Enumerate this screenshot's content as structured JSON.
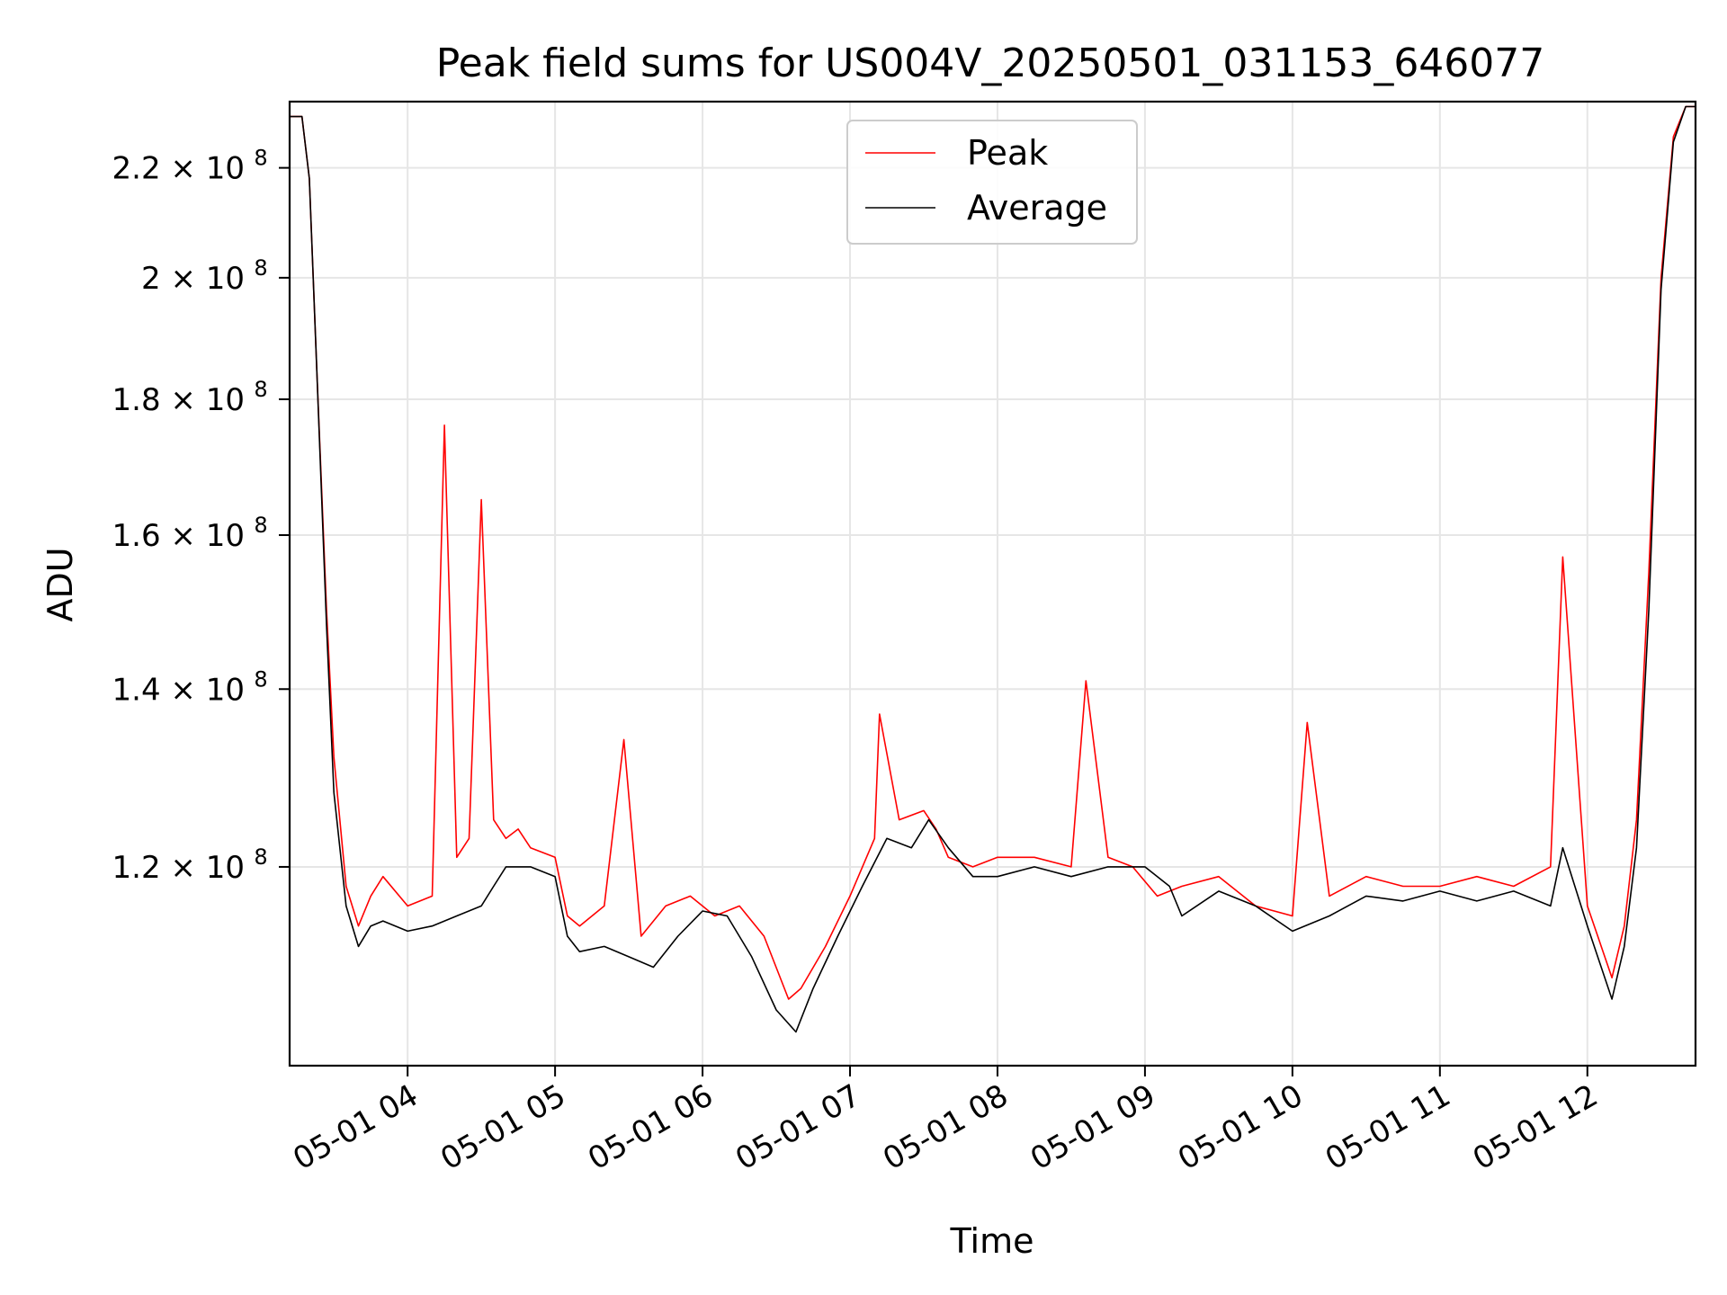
{
  "chart_data": {
    "type": "line",
    "title": "Peak field sums for US004V_20250501_031153_646077",
    "xlabel": "Time",
    "ylabel": "ADU",
    "y_scale": "log",
    "grid": true,
    "legend_position": "top-center",
    "xlim": [
      "2025-05-01 03:12",
      "2025-05-01 12:44"
    ],
    "ylim": [
      101000000,
      233000000
    ],
    "x_ticks": [
      {
        "value": "2025-05-01 04:00",
        "label": "05-01 04"
      },
      {
        "value": "2025-05-01 05:00",
        "label": "05-01 05"
      },
      {
        "value": "2025-05-01 06:00",
        "label": "05-01 06"
      },
      {
        "value": "2025-05-01 07:00",
        "label": "05-01 07"
      },
      {
        "value": "2025-05-01 08:00",
        "label": "05-01 08"
      },
      {
        "value": "2025-05-01 09:00",
        "label": "05-01 09"
      },
      {
        "value": "2025-05-01 10:00",
        "label": "05-01 10"
      },
      {
        "value": "2025-05-01 11:00",
        "label": "05-01 11"
      },
      {
        "value": "2025-05-01 12:00",
        "label": "05-01 12"
      }
    ],
    "y_ticks": [
      {
        "value": 120000000,
        "mantissa": "1.2",
        "base": "10",
        "exp": "8"
      },
      {
        "value": 140000000,
        "mantissa": "1.4",
        "base": "10",
        "exp": "8"
      },
      {
        "value": 160000000,
        "mantissa": "1.6",
        "base": "10",
        "exp": "8"
      },
      {
        "value": 180000000,
        "mantissa": "1.8",
        "base": "10",
        "exp": "8"
      },
      {
        "value": 200000000,
        "mantissa": "2",
        "base": "10",
        "exp": "8"
      },
      {
        "value": 220000000,
        "mantissa": "2.2",
        "base": "10",
        "exp": "8"
      }
    ],
    "series": [
      {
        "name": "Peak",
        "color": "#ff0000",
        "x": [
          "2025-05-01 03:12",
          "2025-05-01 03:17",
          "2025-05-01 03:20",
          "2025-05-01 03:23",
          "2025-05-01 03:27",
          "2025-05-01 03:30",
          "2025-05-01 03:35",
          "2025-05-01 03:40",
          "2025-05-01 03:45",
          "2025-05-01 03:50",
          "2025-05-01 04:00",
          "2025-05-01 04:10",
          "2025-05-01 04:15",
          "2025-05-01 04:20",
          "2025-05-01 04:25",
          "2025-05-01 04:30",
          "2025-05-01 04:35",
          "2025-05-01 04:40",
          "2025-05-01 04:45",
          "2025-05-01 04:50",
          "2025-05-01 05:00",
          "2025-05-01 05:05",
          "2025-05-01 05:10",
          "2025-05-01 05:20",
          "2025-05-01 05:28",
          "2025-05-01 05:35",
          "2025-05-01 05:45",
          "2025-05-01 05:55",
          "2025-05-01 06:05",
          "2025-05-01 06:15",
          "2025-05-01 06:25",
          "2025-05-01 06:35",
          "2025-05-01 06:40",
          "2025-05-01 06:50",
          "2025-05-01 07:00",
          "2025-05-01 07:10",
          "2025-05-01 07:12",
          "2025-05-01 07:20",
          "2025-05-01 07:30",
          "2025-05-01 07:35",
          "2025-05-01 07:40",
          "2025-05-01 07:50",
          "2025-05-01 08:00",
          "2025-05-01 08:15",
          "2025-05-01 08:30",
          "2025-05-01 08:36",
          "2025-05-01 08:45",
          "2025-05-01 08:55",
          "2025-05-01 09:05",
          "2025-05-01 09:15",
          "2025-05-01 09:30",
          "2025-05-01 09:45",
          "2025-05-01 10:00",
          "2025-05-01 10:06",
          "2025-05-01 10:15",
          "2025-05-01 10:30",
          "2025-05-01 10:45",
          "2025-05-01 11:00",
          "2025-05-01 11:15",
          "2025-05-01 11:30",
          "2025-05-01 11:45",
          "2025-05-01 11:50",
          "2025-05-01 12:00",
          "2025-05-01 12:10",
          "2025-05-01 12:15",
          "2025-05-01 12:20",
          "2025-05-01 12:25",
          "2025-05-01 12:30",
          "2025-05-01 12:35",
          "2025-05-01 12:40",
          "2025-05-01 12:44"
        ],
        "values": [
          230000000,
          230000000,
          218000000,
          185000000,
          150000000,
          132000000,
          118000000,
          114000000,
          117000000,
          119000000,
          116000000,
          117000000,
          176000000,
          121000000,
          123000000,
          165000000,
          125000000,
          123000000,
          124000000,
          122000000,
          121000000,
          115000000,
          114000000,
          116000000,
          134000000,
          113000000,
          116000000,
          117000000,
          115000000,
          116000000,
          113000000,
          107000000,
          108000000,
          112000000,
          117000000,
          123000000,
          137000000,
          125000000,
          126000000,
          124000000,
          121000000,
          120000000,
          121000000,
          121000000,
          120000000,
          141000000,
          121000000,
          120000000,
          117000000,
          118000000,
          119000000,
          116000000,
          115000000,
          136000000,
          117000000,
          119000000,
          118000000,
          118000000,
          119000000,
          118000000,
          120000000,
          157000000,
          116000000,
          109000000,
          114000000,
          125000000,
          155000000,
          200000000,
          226000000,
          232000000,
          232000000
        ]
      },
      {
        "name": "Average",
        "color": "#000000",
        "x": [
          "2025-05-01 03:12",
          "2025-05-01 03:17",
          "2025-05-01 03:20",
          "2025-05-01 03:23",
          "2025-05-01 03:27",
          "2025-05-01 03:30",
          "2025-05-01 03:35",
          "2025-05-01 03:40",
          "2025-05-01 03:45",
          "2025-05-01 03:50",
          "2025-05-01 04:00",
          "2025-05-01 04:10",
          "2025-05-01 04:20",
          "2025-05-01 04:30",
          "2025-05-01 04:35",
          "2025-05-01 04:40",
          "2025-05-01 04:50",
          "2025-05-01 05:00",
          "2025-05-01 05:05",
          "2025-05-01 05:10",
          "2025-05-01 05:20",
          "2025-05-01 05:30",
          "2025-05-01 05:40",
          "2025-05-01 05:50",
          "2025-05-01 06:00",
          "2025-05-01 06:10",
          "2025-05-01 06:20",
          "2025-05-01 06:30",
          "2025-05-01 06:38",
          "2025-05-01 06:45",
          "2025-05-01 06:55",
          "2025-05-01 07:05",
          "2025-05-01 07:15",
          "2025-05-01 07:25",
          "2025-05-01 07:32",
          "2025-05-01 07:40",
          "2025-05-01 07:50",
          "2025-05-01 08:00",
          "2025-05-01 08:15",
          "2025-05-01 08:30",
          "2025-05-01 08:45",
          "2025-05-01 09:00",
          "2025-05-01 09:10",
          "2025-05-01 09:15",
          "2025-05-01 09:30",
          "2025-05-01 09:45",
          "2025-05-01 10:00",
          "2025-05-01 10:15",
          "2025-05-01 10:30",
          "2025-05-01 10:45",
          "2025-05-01 11:00",
          "2025-05-01 11:15",
          "2025-05-01 11:30",
          "2025-05-01 11:45",
          "2025-05-01 11:50",
          "2025-05-01 12:00",
          "2025-05-01 12:10",
          "2025-05-01 12:15",
          "2025-05-01 12:20",
          "2025-05-01 12:25",
          "2025-05-01 12:30",
          "2025-05-01 12:35",
          "2025-05-01 12:40",
          "2025-05-01 12:44"
        ],
        "values": [
          230000000,
          230000000,
          218000000,
          185000000,
          148000000,
          128000000,
          116000000,
          112000000,
          114000000,
          114500000,
          113500000,
          114000000,
          115000000,
          116000000,
          118000000,
          120000000,
          120000000,
          119000000,
          113000000,
          111500000,
          112000000,
          111000000,
          110000000,
          113000000,
          115500000,
          115000000,
          111000000,
          106000000,
          104000000,
          108000000,
          113000000,
          118000000,
          123000000,
          122000000,
          125000000,
          122000000,
          119000000,
          119000000,
          120000000,
          119000000,
          120000000,
          120000000,
          118000000,
          115000000,
          117500000,
          116000000,
          113500000,
          115000000,
          117000000,
          116500000,
          117500000,
          116500000,
          117500000,
          116000000,
          122000000,
          114000000,
          107000000,
          112000000,
          122000000,
          150000000,
          198000000,
          225000000,
          232000000,
          232000000
        ]
      }
    ]
  }
}
